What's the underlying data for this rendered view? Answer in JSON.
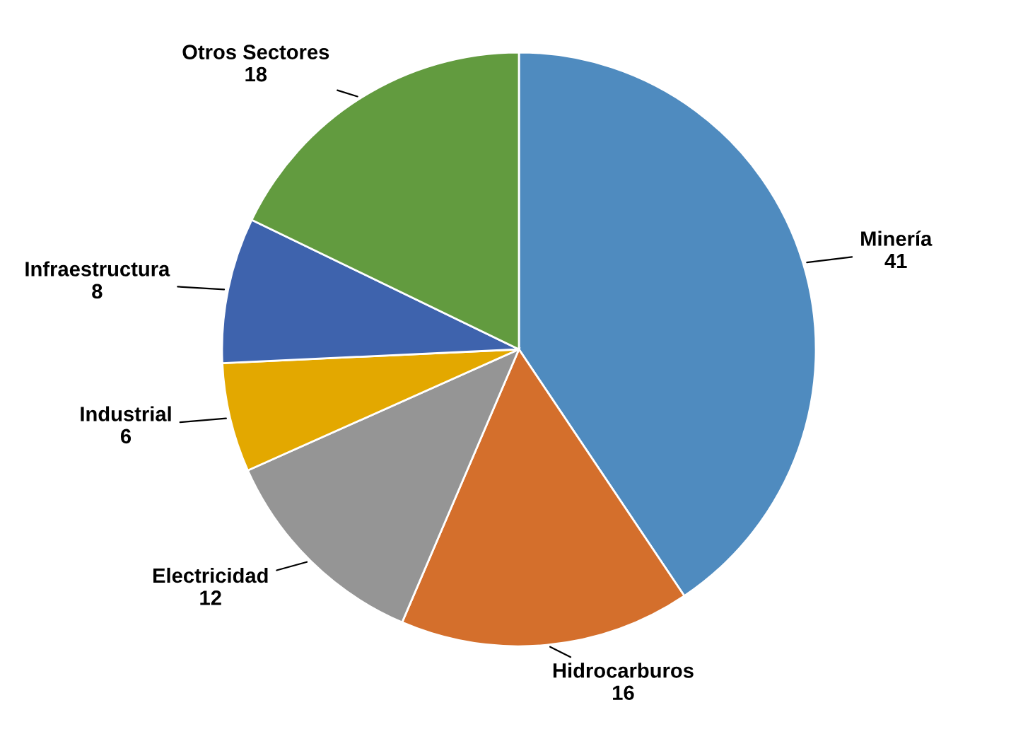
{
  "chart_data": {
    "type": "pie",
    "categories": [
      "Minería",
      "Hidrocarburos",
      "Electricidad",
      "Industrial",
      "Infraestructura",
      "Otros Sectores"
    ],
    "values": [
      41,
      16,
      12,
      6,
      8,
      18
    ],
    "colors": [
      "#4f8bbf",
      "#d46f2c",
      "#959595",
      "#e3a800",
      "#3e63ad",
      "#629b3f"
    ],
    "data_labels": true
  }
}
